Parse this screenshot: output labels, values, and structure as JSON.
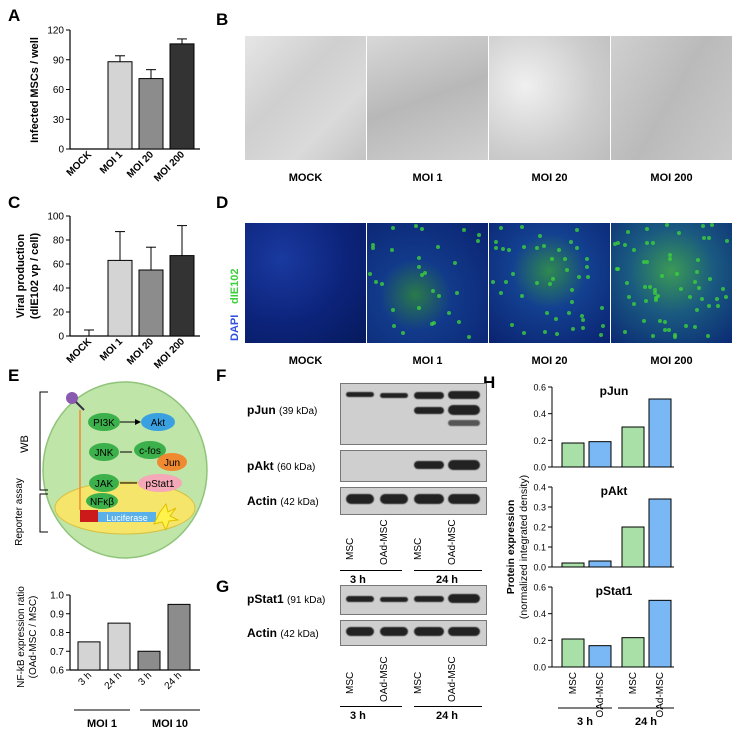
{
  "panels": {
    "A": "A",
    "B": "B",
    "C": "C",
    "D": "D",
    "E": "E",
    "F": "F",
    "G": "G",
    "H": "H"
  },
  "microscopy_captions": [
    "MOCK",
    "MOI 1",
    "MOI 20",
    "MOI 200"
  ],
  "fluorescence": {
    "stain_green": "dIE102",
    "stain_blue": "DAPI",
    "green_color": "#3ccf3c",
    "blue_color": "#3050e0"
  },
  "diagram": {
    "receptors": [
      "PI3K",
      "JNK",
      "JAK"
    ],
    "targets": [
      "Akt",
      "c-fos",
      "Jun",
      "pStat1"
    ],
    "nfkb": "NFκβ",
    "luciferase": "Luciferase",
    "wb": "WB",
    "reporter": "Reporter assay"
  },
  "blots_F": {
    "rows": [
      {
        "name": "pJun",
        "kda": "(39 kDa)"
      },
      {
        "name": "pAkt",
        "kda": "(60 kDa)"
      },
      {
        "name": "Actin",
        "kda": "(42 kDa)"
      }
    ]
  },
  "blots_G": {
    "rows": [
      {
        "name": "pStat1",
        "kda": "(91 kDa)"
      },
      {
        "name": "Actin",
        "kda": "(42 kDa)"
      }
    ]
  },
  "lanes": [
    "MSC",
    "OAd-MSC",
    "MSC",
    "OAd-MSC"
  ],
  "times": [
    "3 h",
    "24 h"
  ],
  "chart_data": [
    {
      "panel": "A",
      "type": "bar",
      "categories": [
        "MOCK",
        "MOI 1",
        "MOI 20",
        "MOI 200"
      ],
      "values": [
        0,
        88,
        71,
        106
      ],
      "errors": [
        0,
        6,
        9,
        5
      ],
      "ylabel": "Infected MSCs / well",
      "ylim": [
        0,
        120
      ],
      "yticks": [
        0,
        30,
        60,
        90,
        120
      ],
      "colors": [
        "#ffffff",
        "#d4d4d4",
        "#8c8c8c",
        "#333333"
      ]
    },
    {
      "panel": "C",
      "type": "bar",
      "categories": [
        "MOCK",
        "MOI 1",
        "MOI 20",
        "MOI 200"
      ],
      "values": [
        0,
        63,
        55,
        67
      ],
      "errors": [
        5,
        24,
        19,
        25
      ],
      "ylabel": "Viral production",
      "ylabel2": "(dIE102 vp / cell)",
      "ylim": [
        0,
        100
      ],
      "yticks": [
        0,
        20,
        40,
        60,
        80,
        100
      ],
      "colors": [
        "#ffffff",
        "#d4d4d4",
        "#8c8c8c",
        "#333333"
      ]
    },
    {
      "panel": "E",
      "type": "bar",
      "categories": [
        "3 h",
        "24 h",
        "3 h",
        "24 h"
      ],
      "groups": [
        "MOI 1",
        "MOI 10"
      ],
      "values": [
        0.75,
        0.85,
        0.7,
        0.95
      ],
      "ylabel": "NF-kB expression ratio",
      "ylabel2": "(OAd-MSC / MSC)",
      "ylim": [
        0.6,
        1.0
      ],
      "yticks": [
        0.6,
        0.7,
        0.8,
        0.9,
        1.0
      ],
      "colors": [
        "#d4d4d4",
        "#d4d4d4",
        "#8c8c8c",
        "#8c8c8c"
      ]
    },
    {
      "panel": "H",
      "type": "bar",
      "ylabel": "Protein expression",
      "ylabel2": "(normalized integrated density)",
      "categories": [
        "MSC",
        "OAd-MSC",
        "MSC",
        "OAd-MSC"
      ],
      "groups": [
        "3 h",
        "24 h"
      ],
      "series": [
        {
          "name": "pJun",
          "values": [
            0.18,
            0.19,
            0.3,
            0.51
          ],
          "ylim": [
            0,
            0.6
          ],
          "yticks": [
            0.0,
            0.2,
            0.4,
            0.6
          ]
        },
        {
          "name": "pAkt",
          "values": [
            0.02,
            0.03,
            0.2,
            0.34
          ],
          "ylim": [
            0,
            0.4
          ],
          "yticks": [
            0.0,
            0.1,
            0.2,
            0.3,
            0.4
          ]
        },
        {
          "name": "pStat1",
          "values": [
            0.21,
            0.16,
            0.22,
            0.5
          ],
          "ylim": [
            0,
            0.6
          ],
          "yticks": [
            0.0,
            0.2,
            0.4,
            0.6
          ]
        }
      ],
      "colors": [
        "#a8e0a8",
        "#7ab8f5",
        "#a8e0a8",
        "#7ab8f5"
      ]
    }
  ]
}
